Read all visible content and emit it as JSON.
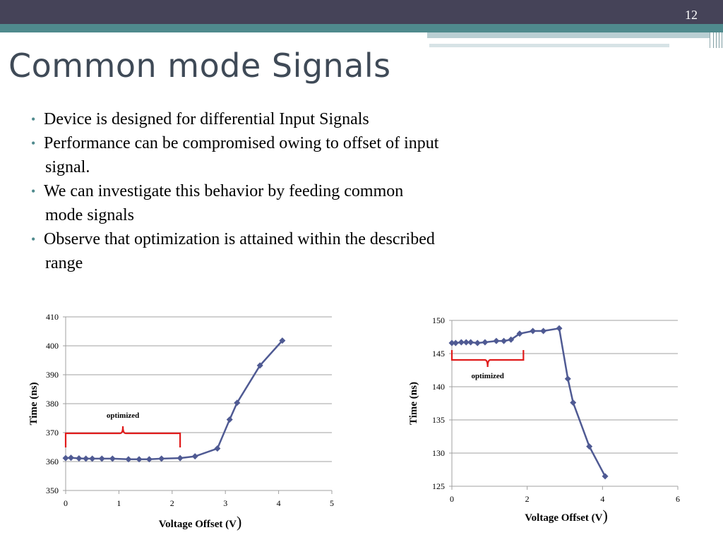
{
  "slide": {
    "number": "12",
    "title": "Common mode Signals",
    "bullets": [
      {
        "line1": "Device is designed for differential Input Signals",
        "line2": ""
      },
      {
        "line1": "Performance can be compromised owing to offset of input",
        "line2": "signal."
      },
      {
        "line1": "We can investigate this behavior by feeding common",
        "line2": "mode signals"
      },
      {
        "line1": "Observe that optimization is attained within the described",
        "line2": "range"
      }
    ]
  },
  "colors": {
    "series": "#4f5a93",
    "bracket": "#e01b1b",
    "grid": "#a0a0a0",
    "title": "#3f4a57",
    "accent": "#4f8a8d"
  },
  "chart_data": [
    {
      "type": "line",
      "xlabel": "Voltage Offset (V",
      "xlabel_paren": ")",
      "ylabel": "Time (ns)",
      "xlim": [
        0,
        5
      ],
      "ylim": [
        350,
        410
      ],
      "xticks": [
        "0",
        "1",
        "2",
        "3",
        "4",
        "5"
      ],
      "yticks": [
        "350",
        "360",
        "370",
        "380",
        "390",
        "400",
        "410"
      ],
      "grid": true,
      "annotation": {
        "text": "optimized",
        "x_start": 0,
        "x_end": 2.15
      },
      "series": [
        {
          "x": [
            0,
            0.1,
            0.25,
            0.38,
            0.5,
            0.68,
            0.88,
            1.18,
            1.38,
            1.57,
            1.8,
            2.15,
            2.43,
            2.85,
            3.08,
            3.22,
            3.65,
            4.07
          ],
          "y": [
            361.2,
            361.3,
            361.1,
            361.0,
            361.0,
            361.0,
            361.0,
            360.8,
            360.8,
            360.8,
            361.0,
            361.2,
            361.8,
            364.5,
            374.5,
            380.3,
            393.2,
            401.8
          ]
        }
      ]
    },
    {
      "type": "line",
      "xlabel": "Voltage Offset (V",
      "xlabel_paren": ")",
      "ylabel": "Time (ns)",
      "xlim": [
        0,
        6
      ],
      "ylim": [
        125,
        150
      ],
      "xticks": [
        "0",
        "2",
        "4",
        "6"
      ],
      "yticks": [
        "125",
        "130",
        "135",
        "140",
        "145",
        "150"
      ],
      "grid": true,
      "annotation": {
        "text": "optimized",
        "x_start": 0,
        "x_end": 1.9
      },
      "series": [
        {
          "x": [
            0,
            0.1,
            0.25,
            0.38,
            0.5,
            0.68,
            0.88,
            1.18,
            1.38,
            1.57,
            1.8,
            2.15,
            2.43,
            2.85,
            3.08,
            3.22,
            3.65,
            4.07
          ],
          "y": [
            146.6,
            146.6,
            146.7,
            146.7,
            146.7,
            146.6,
            146.7,
            146.9,
            146.9,
            147.1,
            148.0,
            148.4,
            148.4,
            148.8,
            141.2,
            137.6,
            131.0,
            126.5
          ]
        }
      ]
    }
  ]
}
